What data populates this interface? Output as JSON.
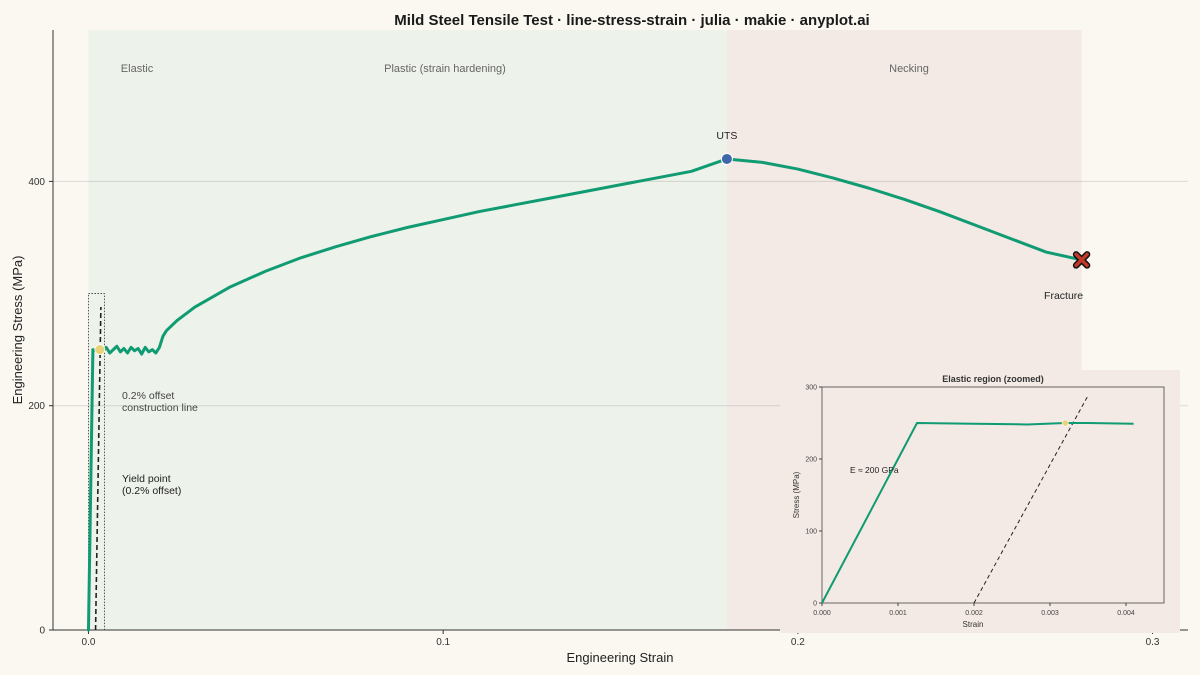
{
  "chart_data": {
    "type": "line",
    "title": "Mild Steel Tensile Test · line-stress-strain · julia · makie · anyplot.ai",
    "xlabel": "Engineering Strain",
    "ylabel": "Engineering Stress (MPa)",
    "xlim": [
      -0.01,
      0.31
    ],
    "ylim": [
      0,
      535
    ],
    "xticks": [
      0.0,
      0.1,
      0.2,
      0.3
    ],
    "xtick_labels": [
      "0.0",
      "0.1",
      "0.2",
      "0.3"
    ],
    "yticks": [
      0,
      200,
      400
    ],
    "ytick_labels": [
      "0",
      "200",
      "400"
    ],
    "grid": "horizontal",
    "regions": [
      {
        "label": "Elastic",
        "x_start": 0.0,
        "x_end": 0.0012
      },
      {
        "label": "Plastic (strain hardening)",
        "x_start": 0.0012,
        "x_end": 0.18
      },
      {
        "label": "Necking",
        "x_start": 0.18,
        "x_end": 0.28
      }
    ],
    "region_colors": {
      "plastic": "#EDF2EA",
      "necking": "#F3EAE5"
    },
    "series": [
      {
        "color": "#109B72",
        "x": [
          0.0,
          0.00125,
          0.002,
          0.003,
          0.004,
          0.005,
          0.006,
          0.007,
          0.008,
          0.009,
          0.01,
          0.011,
          0.012,
          0.013,
          0.014,
          0.015,
          0.016,
          0.017,
          0.018,
          0.019,
          0.02,
          0.021,
          0.022,
          0.025,
          0.03,
          0.04,
          0.05,
          0.06,
          0.07,
          0.08,
          0.09,
          0.1,
          0.11,
          0.12,
          0.13,
          0.14,
          0.15,
          0.16,
          0.17,
          0.18,
          0.19,
          0.2,
          0.21,
          0.22,
          0.23,
          0.24,
          0.25,
          0.26,
          0.27,
          0.28
        ],
        "y": [
          0,
          250,
          249,
          251,
          248,
          252,
          247,
          250,
          253,
          248,
          251,
          247,
          252,
          249,
          251,
          246,
          252,
          248,
          250,
          247,
          252,
          262,
          267,
          276,
          288,
          306,
          320,
          332,
          342,
          351,
          359,
          366,
          373,
          379,
          385,
          391,
          397,
          403,
          409,
          420,
          417,
          411,
          403,
          394,
          384,
          373,
          361,
          349,
          337,
          330
        ]
      }
    ],
    "markers": [
      {
        "label": "UTS",
        "x": 0.18,
        "y": 420,
        "color": "#3F66A8"
      },
      {
        "label": "Fracture",
        "x": 0.28,
        "y": 330,
        "color": "#C0392B"
      },
      {
        "label": "Yield point\n(0.2% offset)",
        "x": 0.0032,
        "y": 250,
        "color": "#E8D27A"
      }
    ],
    "annotations": {
      "offset_line": "0.2% offset\nconstruction line",
      "yield": "Yield point\n(0.2% offset)",
      "uts": "UTS",
      "fracture": "Fracture"
    },
    "offset_line": {
      "x": [
        0.002,
        0.0035
      ],
      "y": [
        0,
        288
      ]
    },
    "inset": {
      "title": "Elastic region (zoomed)",
      "xlabel": "Strain",
      "ylabel": "Stress (MPa)",
      "xlim": [
        0.0,
        0.0045
      ],
      "ylim": [
        0,
        300
      ],
      "xticks": [
        0.0,
        0.001,
        0.002,
        0.003,
        0.004
      ],
      "xtick_labels": [
        "0.000",
        "0.001",
        "0.002",
        "0.003",
        "0.004"
      ],
      "yticks": [
        0,
        100,
        200,
        300
      ],
      "ytick_labels": [
        "0",
        "100",
        "200",
        "300"
      ],
      "annotation": "E ≈ 200 GPa",
      "curve_x": [
        0.0,
        0.00125,
        0.002,
        0.0027,
        0.0032,
        0.0035,
        0.0041
      ],
      "curve_y": [
        0,
        250,
        249,
        248,
        250,
        250,
        249
      ],
      "offset_x": [
        0.002,
        0.0035
      ],
      "offset_y": [
        0,
        288
      ],
      "yield_point": {
        "x": 0.0032,
        "y": 250
      }
    }
  }
}
